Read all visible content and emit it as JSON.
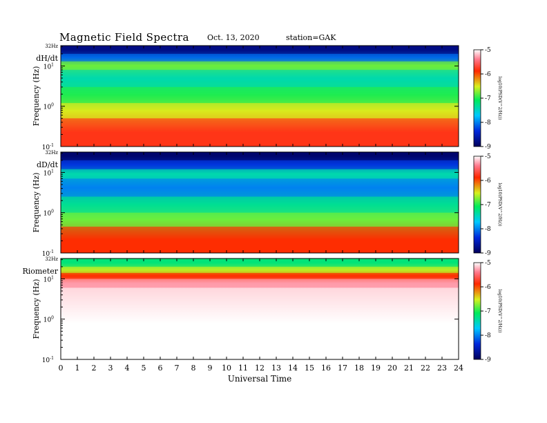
{
  "header": {
    "title": "Magnetic  Field  Spectra",
    "date": "Oct. 13, 2020",
    "station": "station=GAK"
  },
  "chart_data": [
    {
      "type": "heatmap",
      "panel_label": "dH/dt",
      "ylabel": "Frequency (Hz)",
      "y_scale": "log",
      "ylim": [
        0.1,
        32
      ],
      "y_ticks": [
        {
          "v": 0.1,
          "b": "10",
          "e": "-1"
        },
        {
          "v": 1,
          "b": "10",
          "e": "0"
        },
        {
          "v": 10,
          "b": "10",
          "e": "1"
        }
      ],
      "y_top_label": "32Hz",
      "xlim": [
        0,
        24
      ],
      "colorbar": {
        "label": "log10(PSD(V^2/Hz))",
        "range": [
          -9,
          -5
        ],
        "ticks": [
          "-5",
          "-6",
          "-7",
          "-8",
          "-9"
        ]
      },
      "bands": [
        {
          "fmin": 20,
          "fmax": 32,
          "level": -8.8
        },
        {
          "fmin": 13,
          "fmax": 20,
          "level": -8.1
        },
        {
          "fmin": 8,
          "fmax": 13,
          "level": -6.8
        },
        {
          "fmin": 3,
          "fmax": 8,
          "level": -7.4
        },
        {
          "fmin": 1.2,
          "fmax": 3,
          "level": -7.0
        },
        {
          "fmin": 0.5,
          "fmax": 1.2,
          "level": -6.5
        },
        {
          "fmin": 0.1,
          "fmax": 0.5,
          "level": -5.8
        }
      ]
    },
    {
      "type": "heatmap",
      "panel_label": "dD/dt",
      "ylabel": "Frequency (Hz)",
      "y_scale": "log",
      "ylim": [
        0.1,
        32
      ],
      "y_ticks": [
        {
          "v": 0.1,
          "b": "10",
          "e": "-1"
        },
        {
          "v": 1,
          "b": "10",
          "e": "0"
        },
        {
          "v": 10,
          "b": "10",
          "e": "1"
        }
      ],
      "y_top_label": "32Hz",
      "xlim": [
        0,
        24
      ],
      "colorbar": {
        "label": "log10(PSD(V^2/Hz))",
        "range": [
          -9,
          -5
        ],
        "ticks": [
          "-5",
          "-6",
          "-7",
          "-8",
          "-9"
        ]
      },
      "bands": [
        {
          "fmin": 20,
          "fmax": 32,
          "level": -8.9
        },
        {
          "fmin": 12,
          "fmax": 20,
          "level": -8.3
        },
        {
          "fmin": 7,
          "fmax": 12,
          "level": -7.4
        },
        {
          "fmin": 2.5,
          "fmax": 7,
          "level": -8.0
        },
        {
          "fmin": 1,
          "fmax": 2.5,
          "level": -7.3
        },
        {
          "fmin": 0.45,
          "fmax": 1,
          "level": -6.8
        },
        {
          "fmin": 0.1,
          "fmax": 0.45,
          "level": -5.9
        }
      ]
    },
    {
      "type": "heatmap",
      "panel_label": "Riometer",
      "ylabel": "Frequency (Hz)",
      "y_scale": "log",
      "ylim": [
        0.1,
        32
      ],
      "y_ticks": [
        {
          "v": 0.1,
          "b": "10",
          "e": "-1"
        },
        {
          "v": 1,
          "b": "10",
          "e": "0"
        },
        {
          "v": 10,
          "b": "10",
          "e": "1"
        }
      ],
      "y_top_label": "32Hz",
      "xlim": [
        0,
        24
      ],
      "xlabel": "Universal Time",
      "x_ticks": [
        "0",
        "1",
        "2",
        "3",
        "4",
        "5",
        "6",
        "7",
        "8",
        "9",
        "10",
        "11",
        "12",
        "13",
        "14",
        "15",
        "16",
        "17",
        "18",
        "19",
        "20",
        "21",
        "22",
        "23",
        "24"
      ],
      "colorbar": {
        "label": "log10(PSD(V^2/Hz))",
        "range": [
          -9,
          -5
        ],
        "ticks": [
          "-5",
          "-6",
          "-7",
          "-8",
          "-9"
        ]
      },
      "bands": [
        {
          "fmin": 20,
          "fmax": 32,
          "level": -7.2
        },
        {
          "fmin": 14,
          "fmax": 20,
          "level": -6.6
        },
        {
          "fmin": 10,
          "fmax": 14,
          "level": -5.9
        },
        {
          "fmin": 6,
          "fmax": 10,
          "level": -5.3
        },
        {
          "fmin": 0.1,
          "fmax": 6,
          "level": -4.8
        }
      ]
    }
  ]
}
